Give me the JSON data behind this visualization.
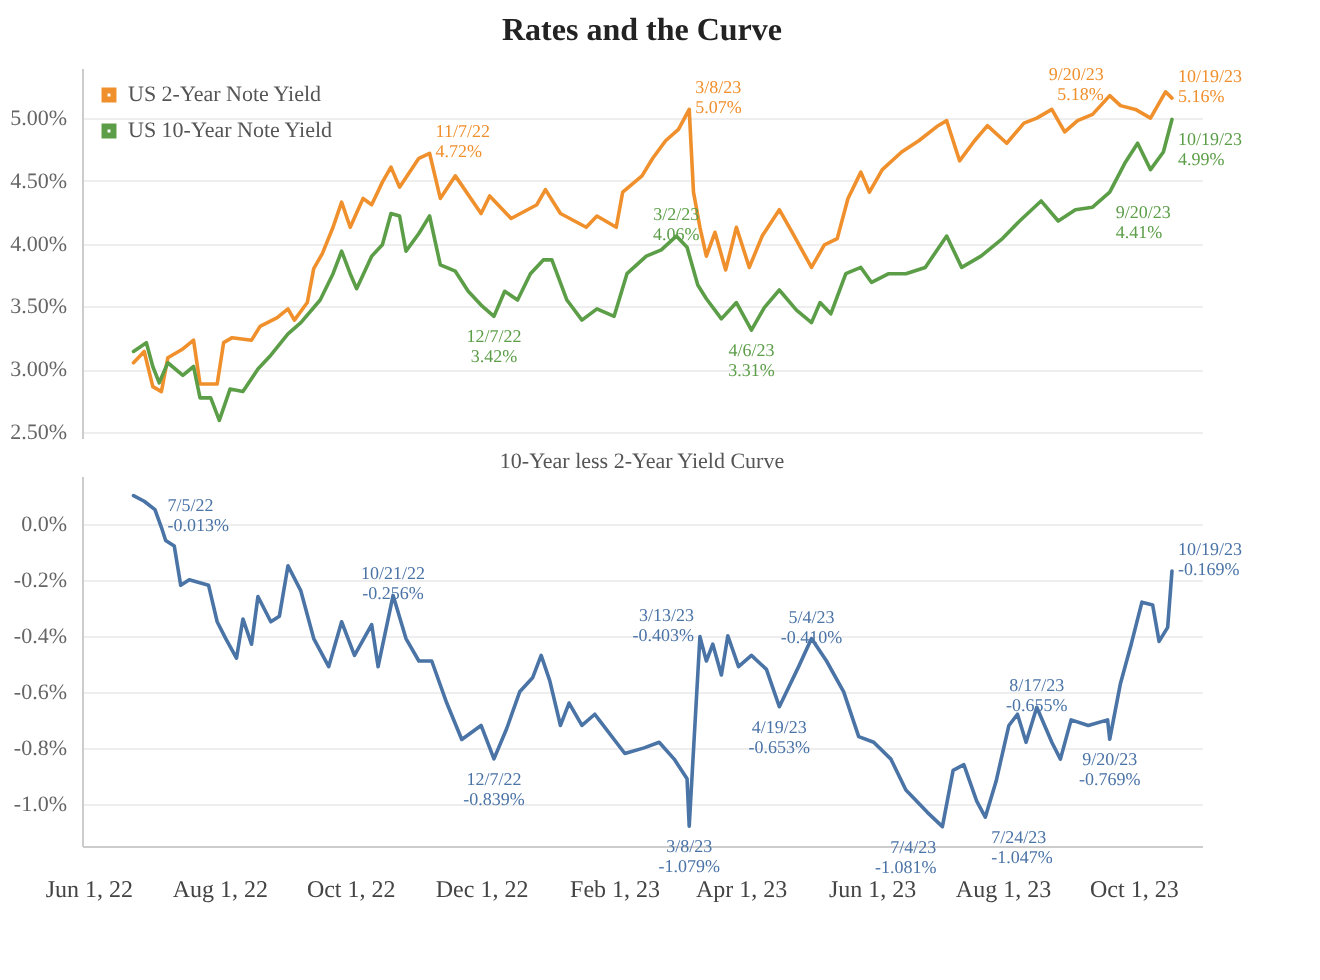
{
  "chart_data": [
    {
      "type": "line",
      "title": "Rates and the Curve",
      "xlim": [
        "2022-05-29",
        "2023-11-02"
      ],
      "ylim": [
        2.45,
        5.4
      ],
      "yticks": [
        {
          "value": 2.5,
          "label": "2.50%"
        },
        {
          "value": 3,
          "label": "3.00%"
        },
        {
          "value": 3.5,
          "label": "3.50%"
        },
        {
          "value": 4,
          "label": "4.00%"
        },
        {
          "value": 4.5,
          "label": "4.50%"
        },
        {
          "value": 5,
          "label": "5.00%"
        }
      ],
      "tick_labels": "y",
      "grid": "y",
      "legend": "top left",
      "line_style": "solid",
      "marker": "none",
      "series": [
        {
          "name": "US 2-Year Note Yield",
          "color": "#f0902d",
          "x": [
            "2022-06-22",
            "2022-06-27",
            "2022-07-01",
            "2022-07-05",
            "2022-07-08",
            "2022-07-15",
            "2022-07-20",
            "2022-07-23",
            "2022-07-31",
            "2022-08-03",
            "2022-08-07",
            "2022-08-16",
            "2022-08-20",
            "2022-08-28",
            "2022-09-02",
            "2022-09-05",
            "2022-09-11",
            "2022-09-14",
            "2022-09-18",
            "2022-09-23",
            "2022-09-27",
            "2022-10-01",
            "2022-10-07",
            "2022-10-11",
            "2022-10-16",
            "2022-10-20",
            "2022-10-24",
            "2022-11-02",
            "2022-11-07",
            "2022-11-12",
            "2022-11-19",
            "2022-12-01",
            "2022-12-05",
            "2022-12-15",
            "2022-12-27",
            "2022-12-31",
            "2023-01-07",
            "2023-01-19",
            "2023-01-24",
            "2023-02-02",
            "2023-02-05",
            "2023-02-14",
            "2023-02-19",
            "2023-02-25",
            "2023-03-03",
            "2023-03-08",
            "2023-03-10",
            "2023-03-13",
            "2023-03-16",
            "2023-03-20",
            "2023-03-25",
            "2023-03-30",
            "2023-04-05",
            "2023-04-11",
            "2023-04-19",
            "2023-04-25",
            "2023-05-04",
            "2023-05-10",
            "2023-05-16",
            "2023-05-21",
            "2023-05-27",
            "2023-05-31",
            "2023-06-06",
            "2023-06-15",
            "2023-06-23",
            "2023-07-02",
            "2023-07-06",
            "2023-07-12",
            "2023-07-19",
            "2023-07-25",
            "2023-08-03",
            "2023-08-11",
            "2023-08-17",
            "2023-08-24",
            "2023-08-30",
            "2023-09-05",
            "2023-09-12",
            "2023-09-20",
            "2023-09-25",
            "2023-10-02",
            "2023-10-09",
            "2023-10-16",
            "2023-10-19"
          ],
          "values": [
            3.05,
            3.14,
            2.86,
            2.82,
            3.09,
            3.16,
            3.23,
            2.88,
            2.88,
            3.21,
            3.25,
            3.23,
            3.34,
            3.41,
            3.48,
            3.39,
            3.53,
            3.8,
            3.92,
            4.13,
            4.33,
            4.13,
            4.36,
            4.31,
            4.49,
            4.61,
            4.45,
            4.68,
            4.72,
            4.36,
            4.54,
            4.24,
            4.38,
            4.2,
            4.31,
            4.43,
            4.24,
            4.13,
            4.22,
            4.13,
            4.41,
            4.54,
            4.68,
            4.82,
            4.91,
            5.07,
            4.41,
            4.13,
            3.9,
            4.09,
            3.79,
            4.13,
            3.81,
            4.06,
            4.27,
            4.09,
            3.81,
            3.99,
            4.04,
            4.36,
            4.57,
            4.41,
            4.59,
            4.73,
            4.82,
            4.94,
            4.98,
            4.66,
            4.82,
            4.94,
            4.8,
            4.96,
            5.0,
            5.07,
            4.89,
            4.98,
            5.03,
            5.18,
            5.1,
            5.07,
            5.0,
            5.21,
            5.16
          ]
        },
        {
          "name": "US 10-Year Note Yield",
          "color": "#5b9e47",
          "x": [
            "2022-06-22",
            "2022-06-28",
            "2022-07-01",
            "2022-07-04",
            "2022-07-08",
            "2022-07-15",
            "2022-07-20",
            "2022-07-23",
            "2022-07-28",
            "2022-08-01",
            "2022-08-06",
            "2022-08-12",
            "2022-08-19",
            "2022-08-25",
            "2022-09-02",
            "2022-09-08",
            "2022-09-17",
            "2022-09-23",
            "2022-09-27",
            "2022-10-01",
            "2022-10-04",
            "2022-10-11",
            "2022-10-16",
            "2022-10-20",
            "2022-10-24",
            "2022-10-27",
            "2022-11-02",
            "2022-11-07",
            "2022-11-12",
            "2022-11-19",
            "2022-11-25",
            "2022-12-01",
            "2022-12-07",
            "2022-12-12",
            "2022-12-18",
            "2022-12-24",
            "2022-12-30",
            "2023-01-03",
            "2023-01-10",
            "2023-01-17",
            "2023-01-24",
            "2023-02-01",
            "2023-02-07",
            "2023-02-16",
            "2023-02-23",
            "2023-03-02",
            "2023-03-07",
            "2023-03-12",
            "2023-03-16",
            "2023-03-23",
            "2023-03-30",
            "2023-04-06",
            "2023-04-12",
            "2023-04-19",
            "2023-04-27",
            "2023-05-04",
            "2023-05-08",
            "2023-05-13",
            "2023-05-20",
            "2023-05-27",
            "2023-06-01",
            "2023-06-09",
            "2023-06-17",
            "2023-06-26",
            "2023-07-06",
            "2023-07-13",
            "2023-07-22",
            "2023-08-01",
            "2023-08-09",
            "2023-08-19",
            "2023-08-27",
            "2023-09-04",
            "2023-09-12",
            "2023-09-20",
            "2023-09-27",
            "2023-10-03",
            "2023-10-09",
            "2023-10-15",
            "2023-10-19"
          ],
          "values": [
            3.14,
            3.21,
            3.02,
            2.89,
            3.05,
            2.95,
            3.02,
            2.77,
            2.77,
            2.59,
            2.84,
            2.82,
            3.0,
            3.11,
            3.28,
            3.37,
            3.55,
            3.76,
            3.94,
            3.76,
            3.64,
            3.9,
            3.99,
            4.24,
            4.22,
            3.94,
            4.08,
            4.22,
            3.83,
            3.78,
            3.62,
            3.51,
            3.42,
            3.62,
            3.55,
            3.76,
            3.87,
            3.87,
            3.55,
            3.39,
            3.48,
            3.42,
            3.76,
            3.9,
            3.95,
            4.06,
            3.97,
            3.67,
            3.56,
            3.4,
            3.53,
            3.31,
            3.49,
            3.63,
            3.47,
            3.37,
            3.53,
            3.44,
            3.76,
            3.81,
            3.69,
            3.76,
            3.76,
            3.81,
            4.06,
            3.81,
            3.9,
            4.04,
            4.18,
            4.34,
            4.18,
            4.27,
            4.29,
            4.41,
            4.64,
            4.8,
            4.59,
            4.73,
            4.99
          ]
        }
      ],
      "annotations": [
        {
          "text": "11/7/22 4.72%",
          "x": "2022-11-07",
          "y": 4.72
        },
        {
          "text": "3/8/23 5.07%",
          "x": "2023-03-08",
          "y": 5.07
        },
        {
          "text": "9/20/23 5.18%",
          "x": "2023-09-20",
          "y": 5.18
        },
        {
          "text": "10/19/23 5.16%",
          "x": "2023-10-19",
          "y": 5.16
        },
        {
          "text": "12/7/22 3.42%",
          "x": "2022-12-07",
          "y": 3.42
        },
        {
          "text": "3/2/23 4.06%",
          "x": "2023-03-02",
          "y": 4.06
        },
        {
          "text": "4/6/23 3.31%",
          "x": "2023-04-06",
          "y": 3.31
        },
        {
          "text": "9/20/23 4.41%",
          "x": "2023-09-20",
          "y": 4.41
        },
        {
          "text": "10/19/23 4.99%",
          "x": "2023-10-19",
          "y": 4.99
        }
      ]
    },
    {
      "type": "line",
      "title": "10-Year less 2-Year Yield Curve",
      "xlim": [
        "2022-05-29",
        "2023-11-02"
      ],
      "ylim": [
        -1.15,
        0.17
      ],
      "yticks": [
        {
          "value": -1.0,
          "label": "-1.0%"
        },
        {
          "value": -0.8,
          "label": "-0.8%"
        },
        {
          "value": -0.6,
          "label": "-0.6%"
        },
        {
          "value": -0.4,
          "label": "-0.4%"
        },
        {
          "value": -0.2,
          "label": "-0.2%"
        },
        {
          "value": 0,
          "label": "0.0%"
        }
      ],
      "xticks": [
        {
          "value": "2022-06-01",
          "label": "Jun 1, 22"
        },
        {
          "value": "2022-08-01",
          "label": "Aug 1, 22"
        },
        {
          "value": "2022-10-01",
          "label": "Oct 1, 22"
        },
        {
          "value": "2022-12-01",
          "label": "Dec 1, 22"
        },
        {
          "value": "2023-02-01",
          "label": "Feb 1, 23"
        },
        {
          "value": "2023-04-01",
          "label": "Apr 1, 23"
        },
        {
          "value": "2023-06-01",
          "label": "Jun 1, 23"
        },
        {
          "value": "2023-08-01",
          "label": "Aug 1, 23"
        },
        {
          "value": "2023-10-01",
          "label": "Oct 1, 23"
        }
      ],
      "grid": "y",
      "line_style": "solid",
      "marker": "none",
      "series": [
        {
          "color": "#4a73a6",
          "x": [
            "2022-06-22",
            "2022-06-27",
            "2022-07-02",
            "2022-07-05",
            "2022-07-07",
            "2022-07-11",
            "2022-07-14",
            "2022-07-18",
            "2022-07-27",
            "2022-07-31",
            "2022-08-04",
            "2022-08-09",
            "2022-08-12",
            "2022-08-16",
            "2022-08-19",
            "2022-08-25",
            "2022-08-29",
            "2022-09-02",
            "2022-09-08",
            "2022-09-14",
            "2022-09-21",
            "2022-09-27",
            "2022-10-03",
            "2022-10-11",
            "2022-10-14",
            "2022-10-21",
            "2022-10-27",
            "2022-11-02",
            "2022-11-08",
            "2022-11-15",
            "2022-11-22",
            "2022-12-01",
            "2022-12-07",
            "2022-12-13",
            "2022-12-19",
            "2022-12-25",
            "2022-12-29",
            "2023-01-02",
            "2023-01-07",
            "2023-01-11",
            "2023-01-17",
            "2023-01-23",
            "2023-01-25",
            "2023-02-06",
            "2023-02-15",
            "2023-02-22",
            "2023-03-01",
            "2023-03-07",
            "2023-03-08",
            "2023-03-13",
            "2023-03-16",
            "2023-03-19",
            "2023-03-23",
            "2023-03-26",
            "2023-03-31",
            "2023-04-06",
            "2023-04-13",
            "2023-04-19",
            "2023-04-28",
            "2023-05-04",
            "2023-05-11",
            "2023-05-19",
            "2023-05-26",
            "2023-06-02",
            "2023-06-10",
            "2023-06-17",
            "2023-06-27",
            "2023-07-04",
            "2023-07-09",
            "2023-07-14",
            "2023-07-20",
            "2023-07-24",
            "2023-07-29",
            "2023-08-04",
            "2023-08-08",
            "2023-08-12",
            "2023-08-17",
            "2023-08-24",
            "2023-08-28",
            "2023-09-02",
            "2023-09-10",
            "2023-09-19",
            "2023-09-20",
            "2023-09-25",
            "2023-09-30",
            "2023-10-05",
            "2023-10-10",
            "2023-10-13",
            "2023-10-17",
            "2023-10-19"
          ],
          "values": [
            0.1,
            0.08,
            0.05,
            -0.013,
            -0.06,
            -0.08,
            -0.22,
            -0.2,
            -0.22,
            -0.35,
            -0.41,
            -0.48,
            -0.34,
            -0.43,
            -0.26,
            -0.35,
            -0.33,
            -0.15,
            -0.24,
            -0.41,
            -0.51,
            -0.35,
            -0.47,
            -0.36,
            -0.51,
            -0.256,
            -0.41,
            -0.49,
            -0.49,
            -0.64,
            -0.77,
            -0.72,
            -0.839,
            -0.73,
            -0.6,
            -0.55,
            -0.47,
            -0.56,
            -0.72,
            -0.64,
            -0.72,
            -0.68,
            -0.7,
            -0.82,
            -0.8,
            -0.78,
            -0.84,
            -0.91,
            -1.079,
            -0.403,
            -0.49,
            -0.43,
            -0.54,
            -0.4,
            -0.51,
            -0.47,
            -0.52,
            -0.653,
            -0.51,
            -0.41,
            -0.49,
            -0.6,
            -0.76,
            -0.78,
            -0.84,
            -0.95,
            -1.03,
            -1.081,
            -0.88,
            -0.86,
            -0.99,
            -1.047,
            -0.92,
            -0.72,
            -0.68,
            -0.78,
            -0.655,
            -0.78,
            -0.84,
            -0.7,
            -0.72,
            -0.7,
            -0.769,
            -0.57,
            -0.43,
            -0.28,
            -0.29,
            -0.42,
            -0.37,
            -0.169
          ]
        }
      ],
      "annotations": [
        {
          "text": "7/5/22 -0.013%",
          "x": "2022-07-05",
          "y": -0.013
        },
        {
          "text": "10/21/22 -0.256%",
          "x": "2022-10-21",
          "y": -0.256
        },
        {
          "text": "12/7/22 -0.839%",
          "x": "2022-12-07",
          "y": -0.839
        },
        {
          "text": "3/13/23 -0.403%",
          "x": "2023-03-13",
          "y": -0.403
        },
        {
          "text": "3/8/23 -1.079%",
          "x": "2023-03-08",
          "y": -1.079
        },
        {
          "text": "5/4/23 -0.410%",
          "x": "2023-05-04",
          "y": -0.41
        },
        {
          "text": "4/19/23 -0.653%",
          "x": "2023-04-19",
          "y": -0.653
        },
        {
          "text": "7/4/23 -1.081%",
          "x": "2023-07-04",
          "y": -1.081
        },
        {
          "text": "7/24/23 -1.047%",
          "x": "2023-07-24",
          "y": -1.047
        },
        {
          "text": "8/17/23 -0.655%",
          "x": "2023-08-17",
          "y": -0.655
        },
        {
          "text": "9/20/23 -0.769%",
          "x": "2023-09-20",
          "y": -0.769
        },
        {
          "text": "10/19/23 -0.169%",
          "x": "2023-10-19",
          "y": -0.169
        }
      ]
    }
  ]
}
